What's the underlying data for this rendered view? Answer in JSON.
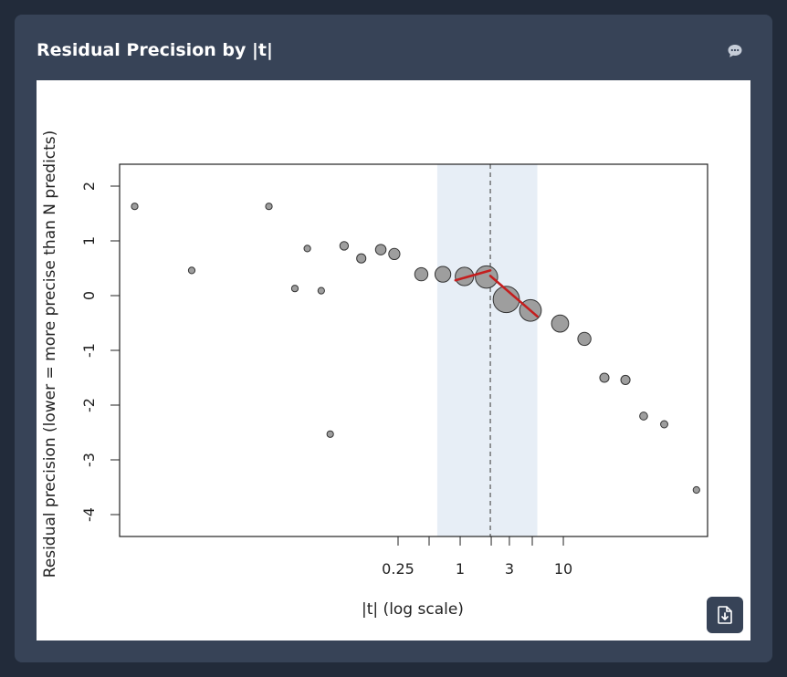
{
  "header": {
    "title": "Residual Precision by |t|"
  },
  "icons": {
    "comment": "comment-icon",
    "download": "download-file-icon"
  },
  "chart_data": {
    "type": "scatter",
    "title": "",
    "xlabel": "|t| (log scale)",
    "ylabel": "Residual precision (lower = more precise than N predicts)",
    "x_scale": "log",
    "xlim": [
      0.0005,
      250
    ],
    "ylim": [
      -4.4,
      2.4
    ],
    "x_ticks": [
      0.25,
      0.5,
      1,
      2,
      3,
      5,
      10
    ],
    "x_tick_labels": [
      "0.25",
      "",
      "1",
      "",
      "3",
      "",
      "10"
    ],
    "y_ticks": [
      2,
      1,
      0,
      -1,
      -2,
      -3,
      -4
    ],
    "y_tick_labels": [
      "2",
      "1",
      "0",
      "-1",
      "-2",
      "-3",
      "-4"
    ],
    "grid": false,
    "reference_line": {
      "x": 1.96,
      "style": "dashed"
    },
    "shaded_band": {
      "x_from": 0.6,
      "x_to": 5.6,
      "color": "#e7eef6"
    },
    "point_color": "#9e9e9e",
    "fit_color": "#c41e1e",
    "points": [
      {
        "x": 0.0007,
        "y": 1.63,
        "size": 1
      },
      {
        "x": 0.0025,
        "y": 0.46,
        "size": 1
      },
      {
        "x": 0.014,
        "y": 1.63,
        "size": 1
      },
      {
        "x": 0.025,
        "y": 0.13,
        "size": 1
      },
      {
        "x": 0.033,
        "y": 0.86,
        "size": 1
      },
      {
        "x": 0.045,
        "y": 0.09,
        "size": 1
      },
      {
        "x": 0.055,
        "y": -2.53,
        "size": 1
      },
      {
        "x": 0.075,
        "y": 0.91,
        "size": 1.3
      },
      {
        "x": 0.11,
        "y": 0.68,
        "size": 1.4
      },
      {
        "x": 0.17,
        "y": 0.84,
        "size": 1.6
      },
      {
        "x": 0.23,
        "y": 0.76,
        "size": 1.7
      },
      {
        "x": 0.42,
        "y": 0.39,
        "size": 2
      },
      {
        "x": 0.68,
        "y": 0.39,
        "size": 2.4
      },
      {
        "x": 1.1,
        "y": 0.35,
        "size": 2.8
      },
      {
        "x": 1.8,
        "y": 0.34,
        "size": 3.4
      },
      {
        "x": 2.8,
        "y": -0.07,
        "size": 4
      },
      {
        "x": 4.8,
        "y": -0.27,
        "size": 3.3
      },
      {
        "x": 9.3,
        "y": -0.51,
        "size": 2.6
      },
      {
        "x": 16,
        "y": -0.79,
        "size": 2
      },
      {
        "x": 25,
        "y": -1.5,
        "size": 1.4
      },
      {
        "x": 40,
        "y": -1.54,
        "size": 1.4
      },
      {
        "x": 60,
        "y": -2.2,
        "size": 1.2
      },
      {
        "x": 95,
        "y": -2.35,
        "size": 1.1
      },
      {
        "x": 195,
        "y": -3.55,
        "size": 1
      }
    ],
    "fit_segments": [
      {
        "x": [
          0.9,
          1.96
        ],
        "y": [
          0.28,
          0.46
        ]
      },
      {
        "x": [
          1.96,
          5.6
        ],
        "y": [
          0.36,
          -0.38
        ]
      }
    ]
  }
}
